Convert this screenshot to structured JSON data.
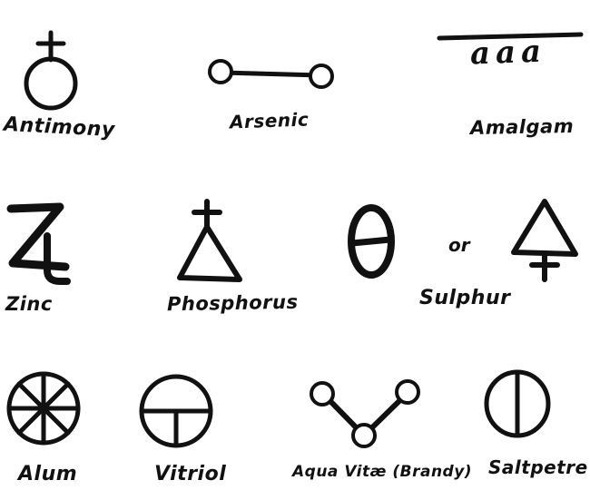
{
  "symbols": {
    "antimony": {
      "label": "Antimony",
      "icon": "circle-cross-icon"
    },
    "arsenic": {
      "label": "Arsenic",
      "icon": "dumbbell-icon"
    },
    "amalgam": {
      "label": "Amalgam",
      "icon": "overlined-aaa-icon",
      "glyph_text": "aaa"
    },
    "zinc": {
      "label": "Zinc",
      "icon": "zinc-four-icon"
    },
    "phosphorus": {
      "label": "Phosphorus",
      "icon": "triangle-cross-icon"
    },
    "sulphur": {
      "label": "Sulphur",
      "icon": "theta-icon",
      "or_text": "or",
      "alt_icon": "triangle-cross-down-icon"
    },
    "alum": {
      "label": "Alum",
      "icon": "spoked-wheel-icon"
    },
    "vitriol": {
      "label": "Vitriol",
      "icon": "circle-t-icon"
    },
    "aqua_vitae": {
      "label": "Aqua Vitæ (Brandy)",
      "icon": "v-circles-icon"
    },
    "saltpetre": {
      "label": "Saltpetre",
      "icon": "circle-vertical-bar-icon"
    }
  },
  "colors": {
    "ink": "#111111",
    "paper": "#ffffff"
  }
}
